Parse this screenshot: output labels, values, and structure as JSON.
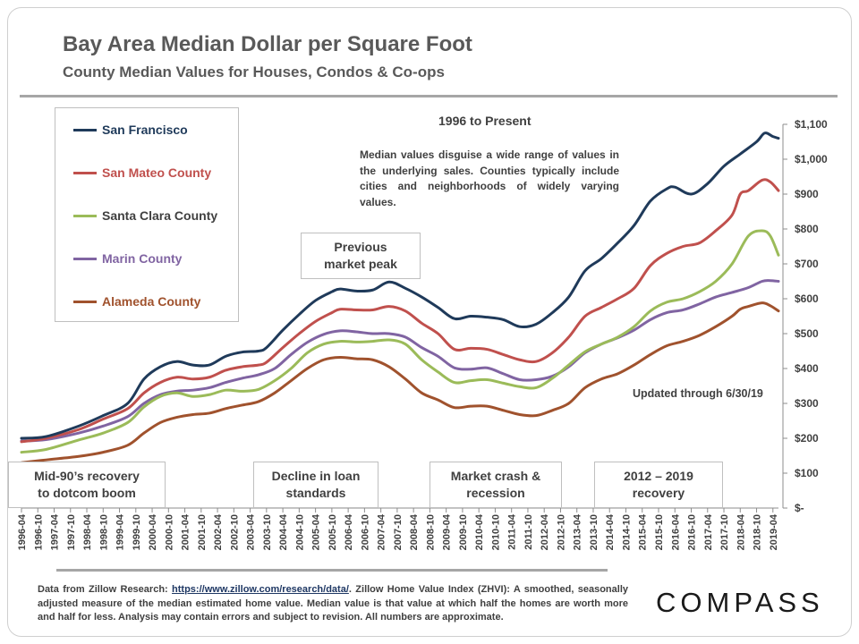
{
  "header": {
    "title": "Bay Area Median Dollar per Square Foot",
    "subtitle": "County Median Values for Houses, Condos & Co-ops"
  },
  "period_label": "1996 to Present",
  "note": "Median values disguise a wide range of values in the underlying sales. Counties typically include cities and neighborhoods of widely varying values.",
  "updated": "Updated through 6/30/19",
  "annotations": {
    "peak": [
      "Previous",
      "market peak"
    ],
    "mid90s": [
      "Mid-90’s recovery",
      "to dotcom boom"
    ],
    "loan": [
      "Decline in loan",
      "standards"
    ],
    "crash": [
      "Market crash &",
      "recession"
    ],
    "recovery": [
      "2012 – 2019",
      "recovery"
    ]
  },
  "footer": {
    "prefix": "Data from Zillow Research: ",
    "link": "https://www.zillow.com/research/data/",
    "suffix": ". Zillow Home Value Index (ZHVI): A smoothed, seasonally adjusted measure of the median estimated home value. Median value is that value at which half the homes are worth more and half for less. Analysis may contain errors and subject to revision. All numbers are approximate."
  },
  "logo": "COMPASS",
  "chart_data": {
    "type": "line",
    "xlabel": "",
    "ylabel": "",
    "ylim": [
      0,
      1100
    ],
    "y_ticks": [
      0,
      100,
      200,
      300,
      400,
      500,
      600,
      700,
      800,
      900,
      1000,
      1100
    ],
    "y_tick_labels": [
      "$-",
      "$100",
      "$200",
      "$300",
      "$400",
      "$500",
      "$600",
      "$700",
      "$800",
      "$900",
      "$1,000",
      "$1,100"
    ],
    "x_tick_labels": [
      "1996-04",
      "1996-10",
      "1997-04",
      "1997-10",
      "1998-04",
      "1998-10",
      "1999-04",
      "1999-10",
      "2000-04",
      "2000-10",
      "2001-04",
      "2001-10",
      "2002-04",
      "2002-10",
      "2003-04",
      "2003-10",
      "2004-04",
      "2004-10",
      "2005-04",
      "2005-10",
      "2006-04",
      "2006-10",
      "2007-04",
      "2007-10",
      "2008-04",
      "2008-10",
      "2009-04",
      "2009-10",
      "2010-04",
      "2010-10",
      "2011-04",
      "2011-10",
      "2012-04",
      "2012-10",
      "2013-04",
      "2013-10",
      "2014-04",
      "2014-10",
      "2015-04",
      "2015-10",
      "2016-04",
      "2016-10",
      "2017-04",
      "2017-10",
      "2018-04",
      "2018-10",
      "2019-04"
    ],
    "grid": false,
    "legend_position": "top-left",
    "series": [
      {
        "name": "San Francisco",
        "color": "#1f3a5a",
        "points": [
          [
            1996.25,
            200
          ],
          [
            1997.0,
            205
          ],
          [
            1998.0,
            235
          ],
          [
            1998.75,
            265
          ],
          [
            1999.5,
            300
          ],
          [
            2000.0,
            370
          ],
          [
            2000.5,
            405
          ],
          [
            2001.0,
            420
          ],
          [
            2001.5,
            410
          ],
          [
            2002.0,
            410
          ],
          [
            2002.5,
            435
          ],
          [
            2003.0,
            447
          ],
          [
            2003.5,
            450
          ],
          [
            2003.75,
            460
          ],
          [
            2004.25,
            510
          ],
          [
            2004.75,
            555
          ],
          [
            2005.25,
            595
          ],
          [
            2005.75,
            620
          ],
          [
            2006.0,
            628
          ],
          [
            2006.5,
            622
          ],
          [
            2007.0,
            625
          ],
          [
            2007.5,
            648
          ],
          [
            2008.0,
            630
          ],
          [
            2008.5,
            605
          ],
          [
            2009.0,
            575
          ],
          [
            2009.5,
            543
          ],
          [
            2010.0,
            550
          ],
          [
            2010.5,
            547
          ],
          [
            2011.0,
            540
          ],
          [
            2011.5,
            520
          ],
          [
            2012.0,
            527
          ],
          [
            2012.5,
            560
          ],
          [
            2013.0,
            605
          ],
          [
            2013.5,
            680
          ],
          [
            2014.0,
            715
          ],
          [
            2014.5,
            760
          ],
          [
            2015.0,
            810
          ],
          [
            2015.5,
            880
          ],
          [
            2016.0,
            915
          ],
          [
            2016.25,
            920
          ],
          [
            2016.75,
            900
          ],
          [
            2017.25,
            930
          ],
          [
            2017.75,
            980
          ],
          [
            2018.25,
            1015
          ],
          [
            2018.75,
            1050
          ],
          [
            2019.0,
            1075
          ],
          [
            2019.25,
            1065
          ],
          [
            2019.42,
            1060
          ]
        ]
      },
      {
        "name": "San Mateo County",
        "color": "#c0504d",
        "points": [
          [
            1996.25,
            190
          ],
          [
            1997.0,
            200
          ],
          [
            1998.0,
            225
          ],
          [
            1998.75,
            255
          ],
          [
            1999.5,
            285
          ],
          [
            2000.0,
            330
          ],
          [
            2000.5,
            360
          ],
          [
            2001.0,
            375
          ],
          [
            2001.5,
            370
          ],
          [
            2002.0,
            375
          ],
          [
            2002.5,
            395
          ],
          [
            2003.0,
            405
          ],
          [
            2003.5,
            410
          ],
          [
            2003.75,
            418
          ],
          [
            2004.25,
            460
          ],
          [
            2004.75,
            500
          ],
          [
            2005.25,
            535
          ],
          [
            2005.75,
            560
          ],
          [
            2006.0,
            570
          ],
          [
            2006.5,
            568
          ],
          [
            2007.0,
            568
          ],
          [
            2007.5,
            578
          ],
          [
            2008.0,
            565
          ],
          [
            2008.5,
            530
          ],
          [
            2009.0,
            500
          ],
          [
            2009.5,
            455
          ],
          [
            2010.0,
            458
          ],
          [
            2010.5,
            455
          ],
          [
            2011.0,
            440
          ],
          [
            2011.5,
            425
          ],
          [
            2012.0,
            420
          ],
          [
            2012.5,
            445
          ],
          [
            2013.0,
            490
          ],
          [
            2013.5,
            550
          ],
          [
            2014.0,
            575
          ],
          [
            2014.5,
            600
          ],
          [
            2015.0,
            630
          ],
          [
            2015.5,
            695
          ],
          [
            2016.0,
            730
          ],
          [
            2016.5,
            750
          ],
          [
            2017.0,
            760
          ],
          [
            2017.5,
            795
          ],
          [
            2018.0,
            840
          ],
          [
            2018.25,
            900
          ],
          [
            2018.5,
            910
          ],
          [
            2018.92,
            940
          ],
          [
            2019.17,
            935
          ],
          [
            2019.42,
            910
          ]
        ]
      },
      {
        "name": "Santa Clara County",
        "color": "#9bbb59",
        "points": [
          [
            1996.25,
            160
          ],
          [
            1997.0,
            168
          ],
          [
            1998.0,
            195
          ],
          [
            1998.75,
            215
          ],
          [
            1999.5,
            245
          ],
          [
            2000.0,
            290
          ],
          [
            2000.5,
            320
          ],
          [
            2001.0,
            330
          ],
          [
            2001.5,
            320
          ],
          [
            2002.0,
            325
          ],
          [
            2002.5,
            338
          ],
          [
            2003.0,
            335
          ],
          [
            2003.5,
            340
          ],
          [
            2004.0,
            365
          ],
          [
            2004.5,
            400
          ],
          [
            2005.0,
            445
          ],
          [
            2005.5,
            470
          ],
          [
            2006.0,
            478
          ],
          [
            2006.5,
            476
          ],
          [
            2007.0,
            478
          ],
          [
            2007.5,
            482
          ],
          [
            2008.0,
            470
          ],
          [
            2008.5,
            425
          ],
          [
            2009.0,
            390
          ],
          [
            2009.5,
            360
          ],
          [
            2010.0,
            365
          ],
          [
            2010.5,
            368
          ],
          [
            2011.0,
            358
          ],
          [
            2011.5,
            348
          ],
          [
            2012.0,
            345
          ],
          [
            2012.5,
            372
          ],
          [
            2013.0,
            410
          ],
          [
            2013.5,
            448
          ],
          [
            2014.0,
            470
          ],
          [
            2014.5,
            490
          ],
          [
            2015.0,
            520
          ],
          [
            2015.5,
            565
          ],
          [
            2016.0,
            590
          ],
          [
            2016.5,
            600
          ],
          [
            2017.0,
            620
          ],
          [
            2017.5,
            650
          ],
          [
            2018.0,
            700
          ],
          [
            2018.5,
            780
          ],
          [
            2018.92,
            795
          ],
          [
            2019.17,
            780
          ],
          [
            2019.42,
            725
          ]
        ]
      },
      {
        "name": "Marin County",
        "color": "#8064a2",
        "points": [
          [
            1996.25,
            192
          ],
          [
            1997.0,
            196
          ],
          [
            1998.0,
            215
          ],
          [
            1998.75,
            235
          ],
          [
            1999.5,
            262
          ],
          [
            2000.0,
            300
          ],
          [
            2000.5,
            325
          ],
          [
            2001.0,
            335
          ],
          [
            2001.5,
            338
          ],
          [
            2002.0,
            345
          ],
          [
            2002.5,
            360
          ],
          [
            2003.0,
            372
          ],
          [
            2003.5,
            382
          ],
          [
            2004.0,
            400
          ],
          [
            2004.5,
            440
          ],
          [
            2005.0,
            475
          ],
          [
            2005.5,
            498
          ],
          [
            2006.0,
            508
          ],
          [
            2006.5,
            505
          ],
          [
            2007.0,
            500
          ],
          [
            2007.5,
            500
          ],
          [
            2008.0,
            490
          ],
          [
            2008.5,
            460
          ],
          [
            2009.0,
            435
          ],
          [
            2009.5,
            402
          ],
          [
            2010.0,
            398
          ],
          [
            2010.5,
            402
          ],
          [
            2011.0,
            385
          ],
          [
            2011.5,
            368
          ],
          [
            2012.0,
            368
          ],
          [
            2012.5,
            378
          ],
          [
            2013.0,
            405
          ],
          [
            2013.5,
            445
          ],
          [
            2014.0,
            470
          ],
          [
            2014.5,
            488
          ],
          [
            2015.0,
            510
          ],
          [
            2015.5,
            540
          ],
          [
            2016.0,
            560
          ],
          [
            2016.5,
            568
          ],
          [
            2017.0,
            585
          ],
          [
            2017.5,
            605
          ],
          [
            2018.0,
            618
          ],
          [
            2018.5,
            632
          ],
          [
            2018.92,
            650
          ],
          [
            2019.17,
            652
          ],
          [
            2019.42,
            650
          ]
        ]
      },
      {
        "name": "Alameda County",
        "color": "#a0522d",
        "points": [
          [
            1996.25,
            130
          ],
          [
            1997.0,
            138
          ],
          [
            1998.0,
            148
          ],
          [
            1998.75,
            160
          ],
          [
            1999.5,
            180
          ],
          [
            2000.0,
            215
          ],
          [
            2000.5,
            245
          ],
          [
            2001.0,
            260
          ],
          [
            2001.5,
            268
          ],
          [
            2002.0,
            272
          ],
          [
            2002.5,
            285
          ],
          [
            2003.0,
            295
          ],
          [
            2003.5,
            305
          ],
          [
            2004.0,
            330
          ],
          [
            2004.5,
            365
          ],
          [
            2005.0,
            400
          ],
          [
            2005.5,
            425
          ],
          [
            2006.0,
            432
          ],
          [
            2006.5,
            428
          ],
          [
            2007.0,
            425
          ],
          [
            2007.5,
            405
          ],
          [
            2008.0,
            370
          ],
          [
            2008.5,
            330
          ],
          [
            2009.0,
            310
          ],
          [
            2009.5,
            288
          ],
          [
            2010.0,
            292
          ],
          [
            2010.5,
            292
          ],
          [
            2011.0,
            280
          ],
          [
            2011.5,
            268
          ],
          [
            2012.0,
            265
          ],
          [
            2012.5,
            280
          ],
          [
            2013.0,
            300
          ],
          [
            2013.5,
            345
          ],
          [
            2014.0,
            370
          ],
          [
            2014.5,
            385
          ],
          [
            2015.0,
            410
          ],
          [
            2015.5,
            440
          ],
          [
            2016.0,
            465
          ],
          [
            2016.5,
            478
          ],
          [
            2017.0,
            495
          ],
          [
            2017.5,
            520
          ],
          [
            2018.0,
            550
          ],
          [
            2018.25,
            570
          ],
          [
            2018.5,
            578
          ],
          [
            2018.92,
            588
          ],
          [
            2019.17,
            580
          ],
          [
            2019.42,
            565
          ]
        ]
      }
    ]
  }
}
